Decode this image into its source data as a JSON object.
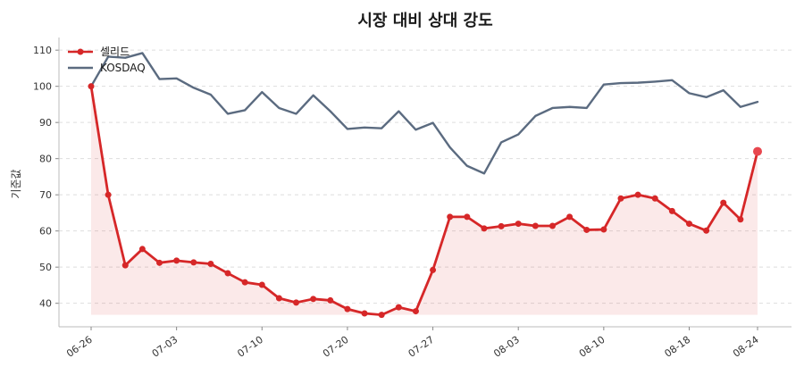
{
  "chart_data": {
    "type": "line",
    "title": "시장 대비 상대 강도",
    "xlabel": "",
    "ylabel": "기준값",
    "ylim": [
      33.5,
      113.5
    ],
    "yticks": [
      40,
      50,
      60,
      70,
      80,
      90,
      100,
      110
    ],
    "grid": "horizontal dashed",
    "legend_position": "top-left",
    "x_tick_labels": [
      "06-26",
      "07-03",
      "07-10",
      "07-20",
      "07-27",
      "08-03",
      "08-10",
      "08-18",
      "08-24"
    ],
    "x_tick_indices": [
      0,
      5,
      10,
      15,
      20,
      25,
      30,
      35,
      39
    ],
    "series": [
      {
        "name": "셀리드",
        "color": "#d62728",
        "fill": true,
        "values": [
          100,
          70,
          50.5,
          55,
          51.2,
          51.8,
          51.3,
          50.9,
          48.3,
          45.8,
          45.1,
          41.4,
          40.2,
          41.2,
          40.8,
          38.4,
          37.2,
          36.8,
          38.9,
          37.8,
          49.2,
          63.9,
          63.9,
          60.7,
          61.3,
          62,
          61.4,
          61.4,
          63.9,
          60.3,
          60.4,
          69,
          70,
          69,
          65.5,
          62,
          60.1,
          67.8,
          63.2,
          82
        ]
      },
      {
        "name": "KOSDAQ",
        "color": "#5b6b80",
        "fill": false,
        "values": [
          100,
          108.2,
          107.9,
          109.2,
          102,
          102.2,
          99.6,
          97.7,
          92.4,
          93.4,
          98.4,
          94,
          92.4,
          97.5,
          93.1,
          88.2,
          88.6,
          88.4,
          93.1,
          88,
          89.9,
          83.1,
          78,
          75.9,
          84.5,
          86.7,
          91.8,
          94,
          94.3,
          94,
          100.5,
          100.9,
          101,
          101.3,
          101.7,
          98.1,
          97,
          98.9,
          94.3,
          95.7
        ]
      }
    ]
  }
}
